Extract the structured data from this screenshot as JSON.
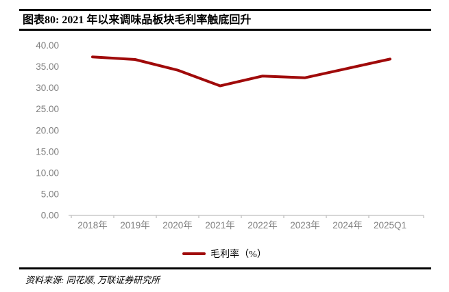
{
  "header": {
    "title": "图表80: 2021 年以来调味品板块毛利率触底回升"
  },
  "footer": {
    "source": "资料来源: 同花顺, 万联证券研究所"
  },
  "colors": {
    "line": "#A00A0A",
    "axis": "#BFBFBF",
    "tick_label": "#7F7F7F",
    "text": "#000000"
  },
  "chart_data": {
    "type": "line",
    "categories": [
      "2018年",
      "2019年",
      "2020年",
      "2021年",
      "2022年",
      "2023年",
      "2024年",
      "2025Q1"
    ],
    "series": [
      {
        "name": "毛利率（%）",
        "values": [
          37.3,
          36.7,
          34.2,
          30.5,
          32.8,
          32.4,
          34.6,
          36.8
        ]
      }
    ],
    "title": "图表80: 2021 年以来调味品板块毛利率触底回升",
    "xlabel": "",
    "ylabel": "",
    "ylim": [
      0,
      40
    ],
    "ytick_step": 5,
    "ytick_labels": [
      "0.00",
      "5.00",
      "10.00",
      "15.00",
      "20.00",
      "25.00",
      "30.00",
      "35.00",
      "40.00"
    ],
    "grid": false,
    "legend_position": "bottom"
  }
}
